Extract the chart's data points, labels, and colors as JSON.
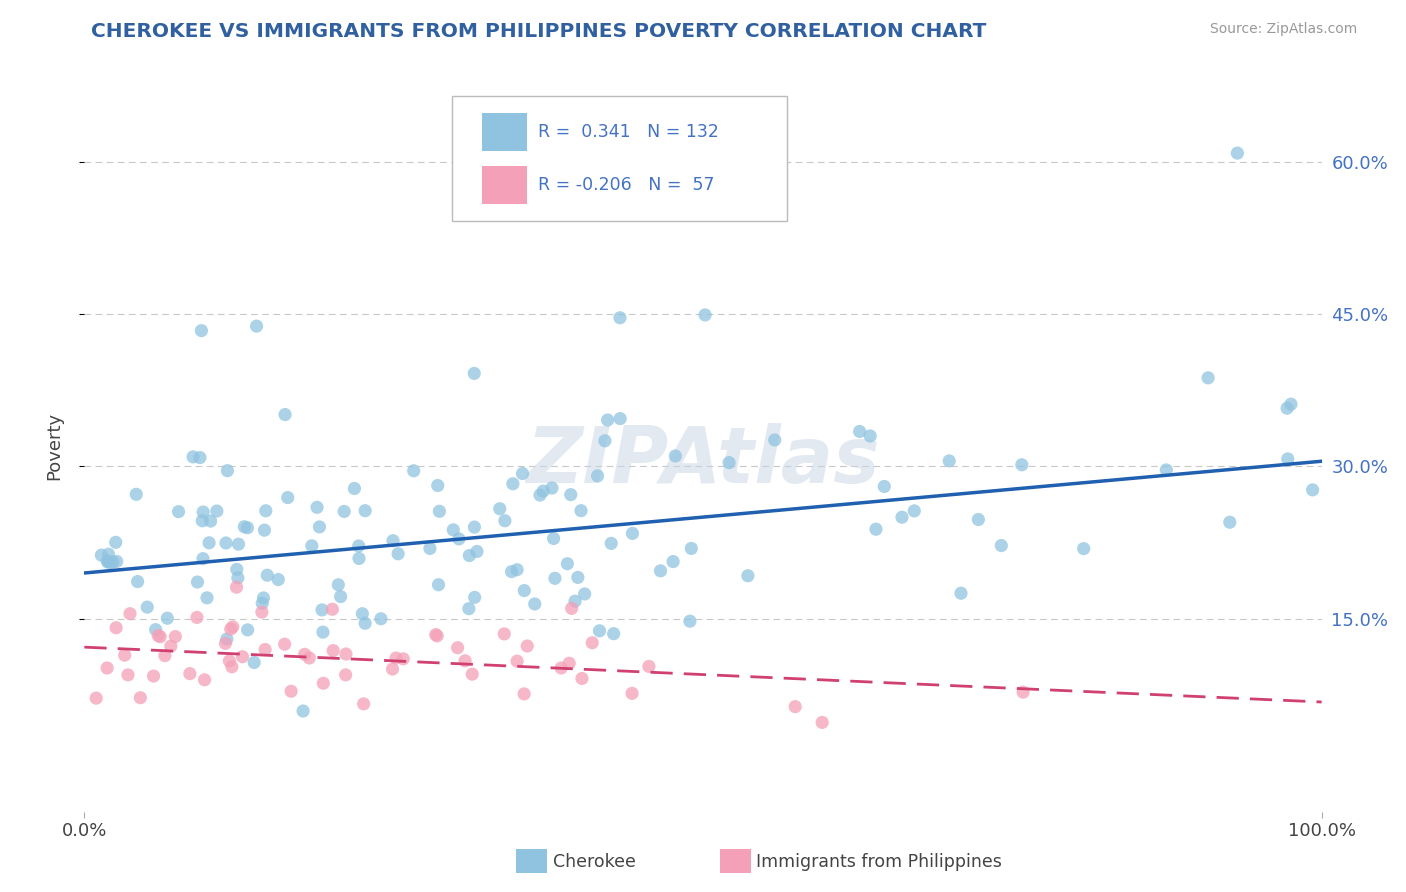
{
  "title": "CHEROKEE VS IMMIGRANTS FROM PHILIPPINES POVERTY CORRELATION CHART",
  "source": "Source: ZipAtlas.com",
  "ylabel": "Poverty",
  "ytick_labels": [
    "15.0%",
    "30.0%",
    "45.0%",
    "60.0%"
  ],
  "ytick_values": [
    0.15,
    0.3,
    0.45,
    0.6
  ],
  "xlim": [
    0.0,
    1.0
  ],
  "ylim": [
    -0.04,
    0.68
  ],
  "legend_label1": "Cherokee",
  "legend_label2": "Immigrants from Philippines",
  "r1": 0.341,
  "n1": 132,
  "r2": -0.206,
  "n2": 57,
  "color_blue": "#8fc3e0",
  "color_pink": "#f4a0b8",
  "color_blue_line": "#2060b0",
  "color_pink_line": "#d04070",
  "watermark": "ZIPAtlas",
  "title_color": "#3060a0",
  "source_color": "#999999",
  "background_color": "#ffffff",
  "blue_line_start_y": 0.195,
  "blue_line_end_y": 0.305,
  "pink_line_start_y": 0.122,
  "pink_line_end_y": 0.068
}
